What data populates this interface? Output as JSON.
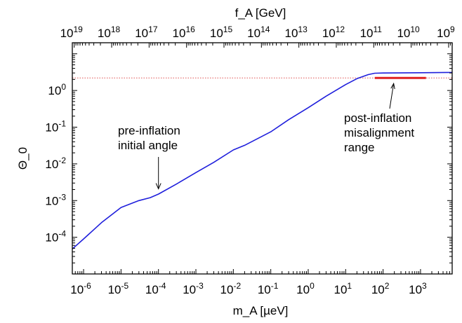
{
  "chart_data": {
    "type": "line",
    "xlabel": "m_A [µeV]",
    "ylabel": "Θ_0",
    "top_xlabel": "f_A [GeV]",
    "xscale": "log",
    "yscale": "log",
    "xlim": [
      5e-07,
      7000
    ],
    "ylim": [
      1e-05,
      20
    ],
    "x_ticks": [
      {
        "base": "10",
        "exp": "-6"
      },
      {
        "base": "10",
        "exp": "-5"
      },
      {
        "base": "10",
        "exp": "-4"
      },
      {
        "base": "10",
        "exp": "-3"
      },
      {
        "base": "10",
        "exp": "-2"
      },
      {
        "base": "10",
        "exp": "-1"
      },
      {
        "base": "10",
        "exp": "0"
      },
      {
        "base": "10",
        "exp": "1"
      },
      {
        "base": "10",
        "exp": "2"
      },
      {
        "base": "10",
        "exp": "3"
      }
    ],
    "y_ticks": [
      {
        "base": "10",
        "exp": "-4"
      },
      {
        "base": "10",
        "exp": "-3"
      },
      {
        "base": "10",
        "exp": "-2"
      },
      {
        "base": "10",
        "exp": "-1"
      },
      {
        "base": "10",
        "exp": "0"
      }
    ],
    "top_x_ticks": [
      {
        "base": "10",
        "exp": "19"
      },
      {
        "base": "10",
        "exp": "18"
      },
      {
        "base": "10",
        "exp": "17"
      },
      {
        "base": "10",
        "exp": "16"
      },
      {
        "base": "10",
        "exp": "15"
      },
      {
        "base": "10",
        "exp": "14"
      },
      {
        "base": "10",
        "exp": "13"
      },
      {
        "base": "10",
        "exp": "12"
      },
      {
        "base": "10",
        "exp": "11"
      },
      {
        "base": "10",
        "exp": "10"
      },
      {
        "base": "10",
        "exp": "9"
      }
    ],
    "series": [
      {
        "color": "#1f1fdc",
        "x": [
          5e-07,
          1e-06,
          3e-06,
          1e-05,
          3e-05,
          6e-05,
          0.0001,
          0.0003,
          0.001,
          0.003,
          0.01,
          0.02,
          0.1,
          0.3,
          1,
          3,
          10,
          20,
          40,
          60,
          100,
          1000,
          7000
        ],
        "y": [
          4.8e-05,
          9e-05,
          0.00025,
          0.00065,
          0.001,
          0.0012,
          0.0015,
          0.0028,
          0.0058,
          0.011,
          0.024,
          0.032,
          0.075,
          0.16,
          0.34,
          0.7,
          1.45,
          2.1,
          2.7,
          2.95,
          3.0,
          3.05,
          3.1
        ]
      }
    ],
    "reference_line": {
      "y": 2.2,
      "color": "#e05050",
      "style": "dotted"
    },
    "range_bar": {
      "x_start": 60,
      "x_end": 1400,
      "y": 2.2,
      "color": "#e02020"
    },
    "annotations": [
      {
        "name": "pre-inflation",
        "lines": [
          "pre-inflation",
          "initial angle"
        ],
        "arrow_to": {
          "x": 0.0001,
          "y": 0.0016
        }
      },
      {
        "name": "post-inflation",
        "lines": [
          "post-inflation",
          "misalignment",
          "range"
        ],
        "arrow_to": {
          "x": 200,
          "y": 2.2
        }
      }
    ],
    "grid": false,
    "legend": "none"
  }
}
